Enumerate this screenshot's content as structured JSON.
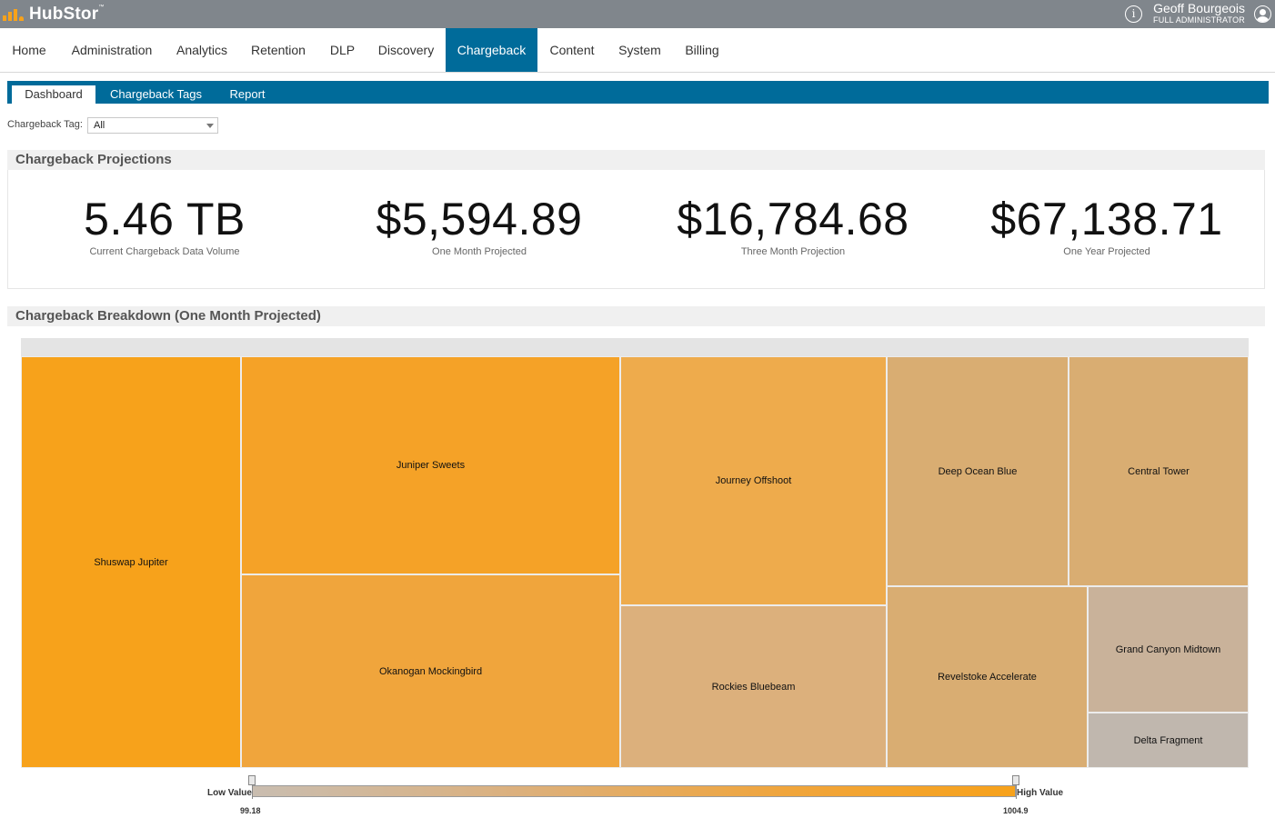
{
  "app": {
    "logo_text": "HubStor",
    "trademark": "™",
    "user_name": "Geoff Bourgeois",
    "user_role": "FULL ADMINISTRATOR",
    "info_icon_glyph": "i",
    "info_icon": "info-icon",
    "avatar_icon": "user-avatar-icon",
    "brand_color": "#f7a21b",
    "accent_color": "#006b9a"
  },
  "nav": {
    "items": [
      {
        "label": "Home"
      },
      {
        "label": "Administration"
      },
      {
        "label": "Analytics"
      },
      {
        "label": "Retention"
      },
      {
        "label": "DLP"
      },
      {
        "label": "Discovery"
      },
      {
        "label": "Chargeback",
        "active": true
      },
      {
        "label": "Content"
      },
      {
        "label": "System"
      },
      {
        "label": "Billing"
      }
    ]
  },
  "subnav": {
    "tabs": [
      {
        "label": "Dashboard",
        "active": true
      },
      {
        "label": "Chargeback Tags"
      },
      {
        "label": "Report"
      }
    ]
  },
  "filter": {
    "label": "Chargeback Tag:",
    "value": "All"
  },
  "projections": {
    "title": "Chargeback Projections",
    "kpis": [
      {
        "value": "5.46 TB",
        "caption": "Current Chargeback Data Volume"
      },
      {
        "value": "$5,594.89",
        "caption": "One Month Projected"
      },
      {
        "value": "$16,784.68",
        "caption": "Three Month Projection"
      },
      {
        "value": "$67,138.71",
        "caption": "One Year Projected"
      }
    ]
  },
  "breakdown": {
    "title": "Chargeback Breakdown (One Month Projected)",
    "cells": [
      {
        "label": "Shuswap Jupiter",
        "color": "#f7a21b"
      },
      {
        "label": "Juniper Sweets",
        "color": "#f5a227"
      },
      {
        "label": "Okanogan Mockingbird",
        "color": "#f0a53c"
      },
      {
        "label": "Journey Offshoot",
        "color": "#eeab4c"
      },
      {
        "label": "Rockies Bluebeam",
        "color": "#dcb07c"
      },
      {
        "label": "Deep Ocean Blue",
        "color": "#d9ad72"
      },
      {
        "label": "Central Tower",
        "color": "#d9ad72"
      },
      {
        "label": "Revelstoke Accelerate",
        "color": "#d9ad72"
      },
      {
        "label": "Grand Canyon Midtown",
        "color": "#c9b29a"
      },
      {
        "label": "Delta Fragment",
        "color": "#c0b7ae"
      }
    ],
    "legend": {
      "low_label": "Low Value",
      "high_label": "High Value",
      "min": "99.18",
      "max": "1004.9"
    }
  }
}
